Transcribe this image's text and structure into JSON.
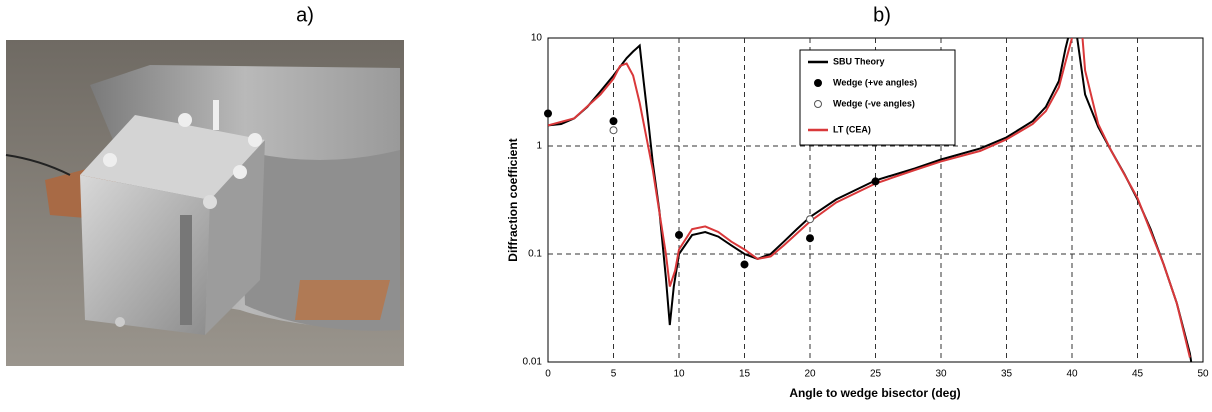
{
  "panel_labels": [
    "a)",
    "b)"
  ],
  "chart_data": {
    "type": "line",
    "xlabel": "Angle to wedge bisector (deg)",
    "ylabel": "Diffraction coefficient",
    "xlim": [
      0,
      50
    ],
    "xticks": [
      0,
      5,
      10,
      15,
      20,
      25,
      30,
      35,
      40,
      45,
      50
    ],
    "ylim": [
      0.01,
      10
    ],
    "yticks": [
      0.01,
      0.1,
      1,
      10
    ],
    "yscale": "log",
    "grid": true,
    "legend": "top",
    "series": [
      {
        "name": "SBU Theory",
        "color": "#000000",
        "mode": "line",
        "x": [
          0,
          1,
          2,
          3,
          4,
          5,
          6,
          6.5,
          7,
          7.3,
          7.7,
          8,
          8.5,
          9,
          9.3,
          9.6,
          10,
          11,
          12,
          13,
          14,
          15,
          16,
          17,
          18,
          19,
          20,
          22,
          25,
          28,
          30,
          33,
          35,
          37,
          38,
          39,
          39.5,
          39.7,
          null,
          40.4,
          41,
          42,
          43,
          44,
          45,
          46,
          47,
          48,
          49,
          49.1
        ],
        "values": [
          1.55,
          1.6,
          1.8,
          2.3,
          3.2,
          4.5,
          6.5,
          7.5,
          8.5,
          4,
          1.5,
          0.7,
          0.25,
          0.06,
          0.022,
          0.05,
          0.1,
          0.15,
          0.16,
          0.145,
          0.12,
          0.1,
          0.09,
          0.1,
          0.13,
          0.17,
          0.22,
          0.32,
          0.48,
          0.62,
          0.75,
          0.95,
          1.2,
          1.7,
          2.3,
          4,
          8,
          10,
          null,
          10,
          3,
          1.5,
          0.9,
          0.55,
          0.32,
          0.17,
          0.08,
          0.035,
          0.012,
          0.01
        ]
      },
      {
        "name": "Wedge (+ve angles)",
        "color": "#000000",
        "mode": "markers",
        "marker_fill": "#000000",
        "x": [
          0,
          5,
          10,
          15,
          20,
          25
        ],
        "values": [
          2.0,
          1.7,
          0.15,
          0.08,
          0.14,
          0.47
        ]
      },
      {
        "name": "Wedge (-ve angles)",
        "color": "#555555",
        "mode": "markers",
        "marker_fill": "#ffffff",
        "x": [
          5,
          20
        ],
        "values": [
          1.4,
          0.21
        ]
      },
      {
        "name": "LT (CEA)",
        "color": "#d9383a",
        "mode": "line",
        "x": [
          0,
          2,
          4,
          5,
          5.5,
          6,
          6.5,
          7,
          8,
          9,
          9.3,
          9.7,
          10,
          11,
          12,
          13,
          14,
          15,
          16,
          17,
          18,
          20,
          22,
          25,
          28,
          30,
          33,
          35,
          37,
          38,
          39,
          39.5,
          40,
          null,
          40.8,
          41,
          42,
          43,
          45,
          47,
          48,
          49
        ],
        "values": [
          1.55,
          1.8,
          3,
          4.2,
          5.5,
          5.8,
          4.5,
          2.5,
          0.6,
          0.1,
          0.05,
          0.07,
          0.11,
          0.17,
          0.18,
          0.16,
          0.13,
          0.11,
          0.09,
          0.095,
          0.12,
          0.2,
          0.3,
          0.45,
          0.6,
          0.72,
          0.9,
          1.15,
          1.6,
          2.1,
          3.5,
          6,
          10,
          null,
          10,
          5,
          1.6,
          0.9,
          0.33,
          0.08,
          0.035,
          0.011
        ]
      }
    ]
  }
}
